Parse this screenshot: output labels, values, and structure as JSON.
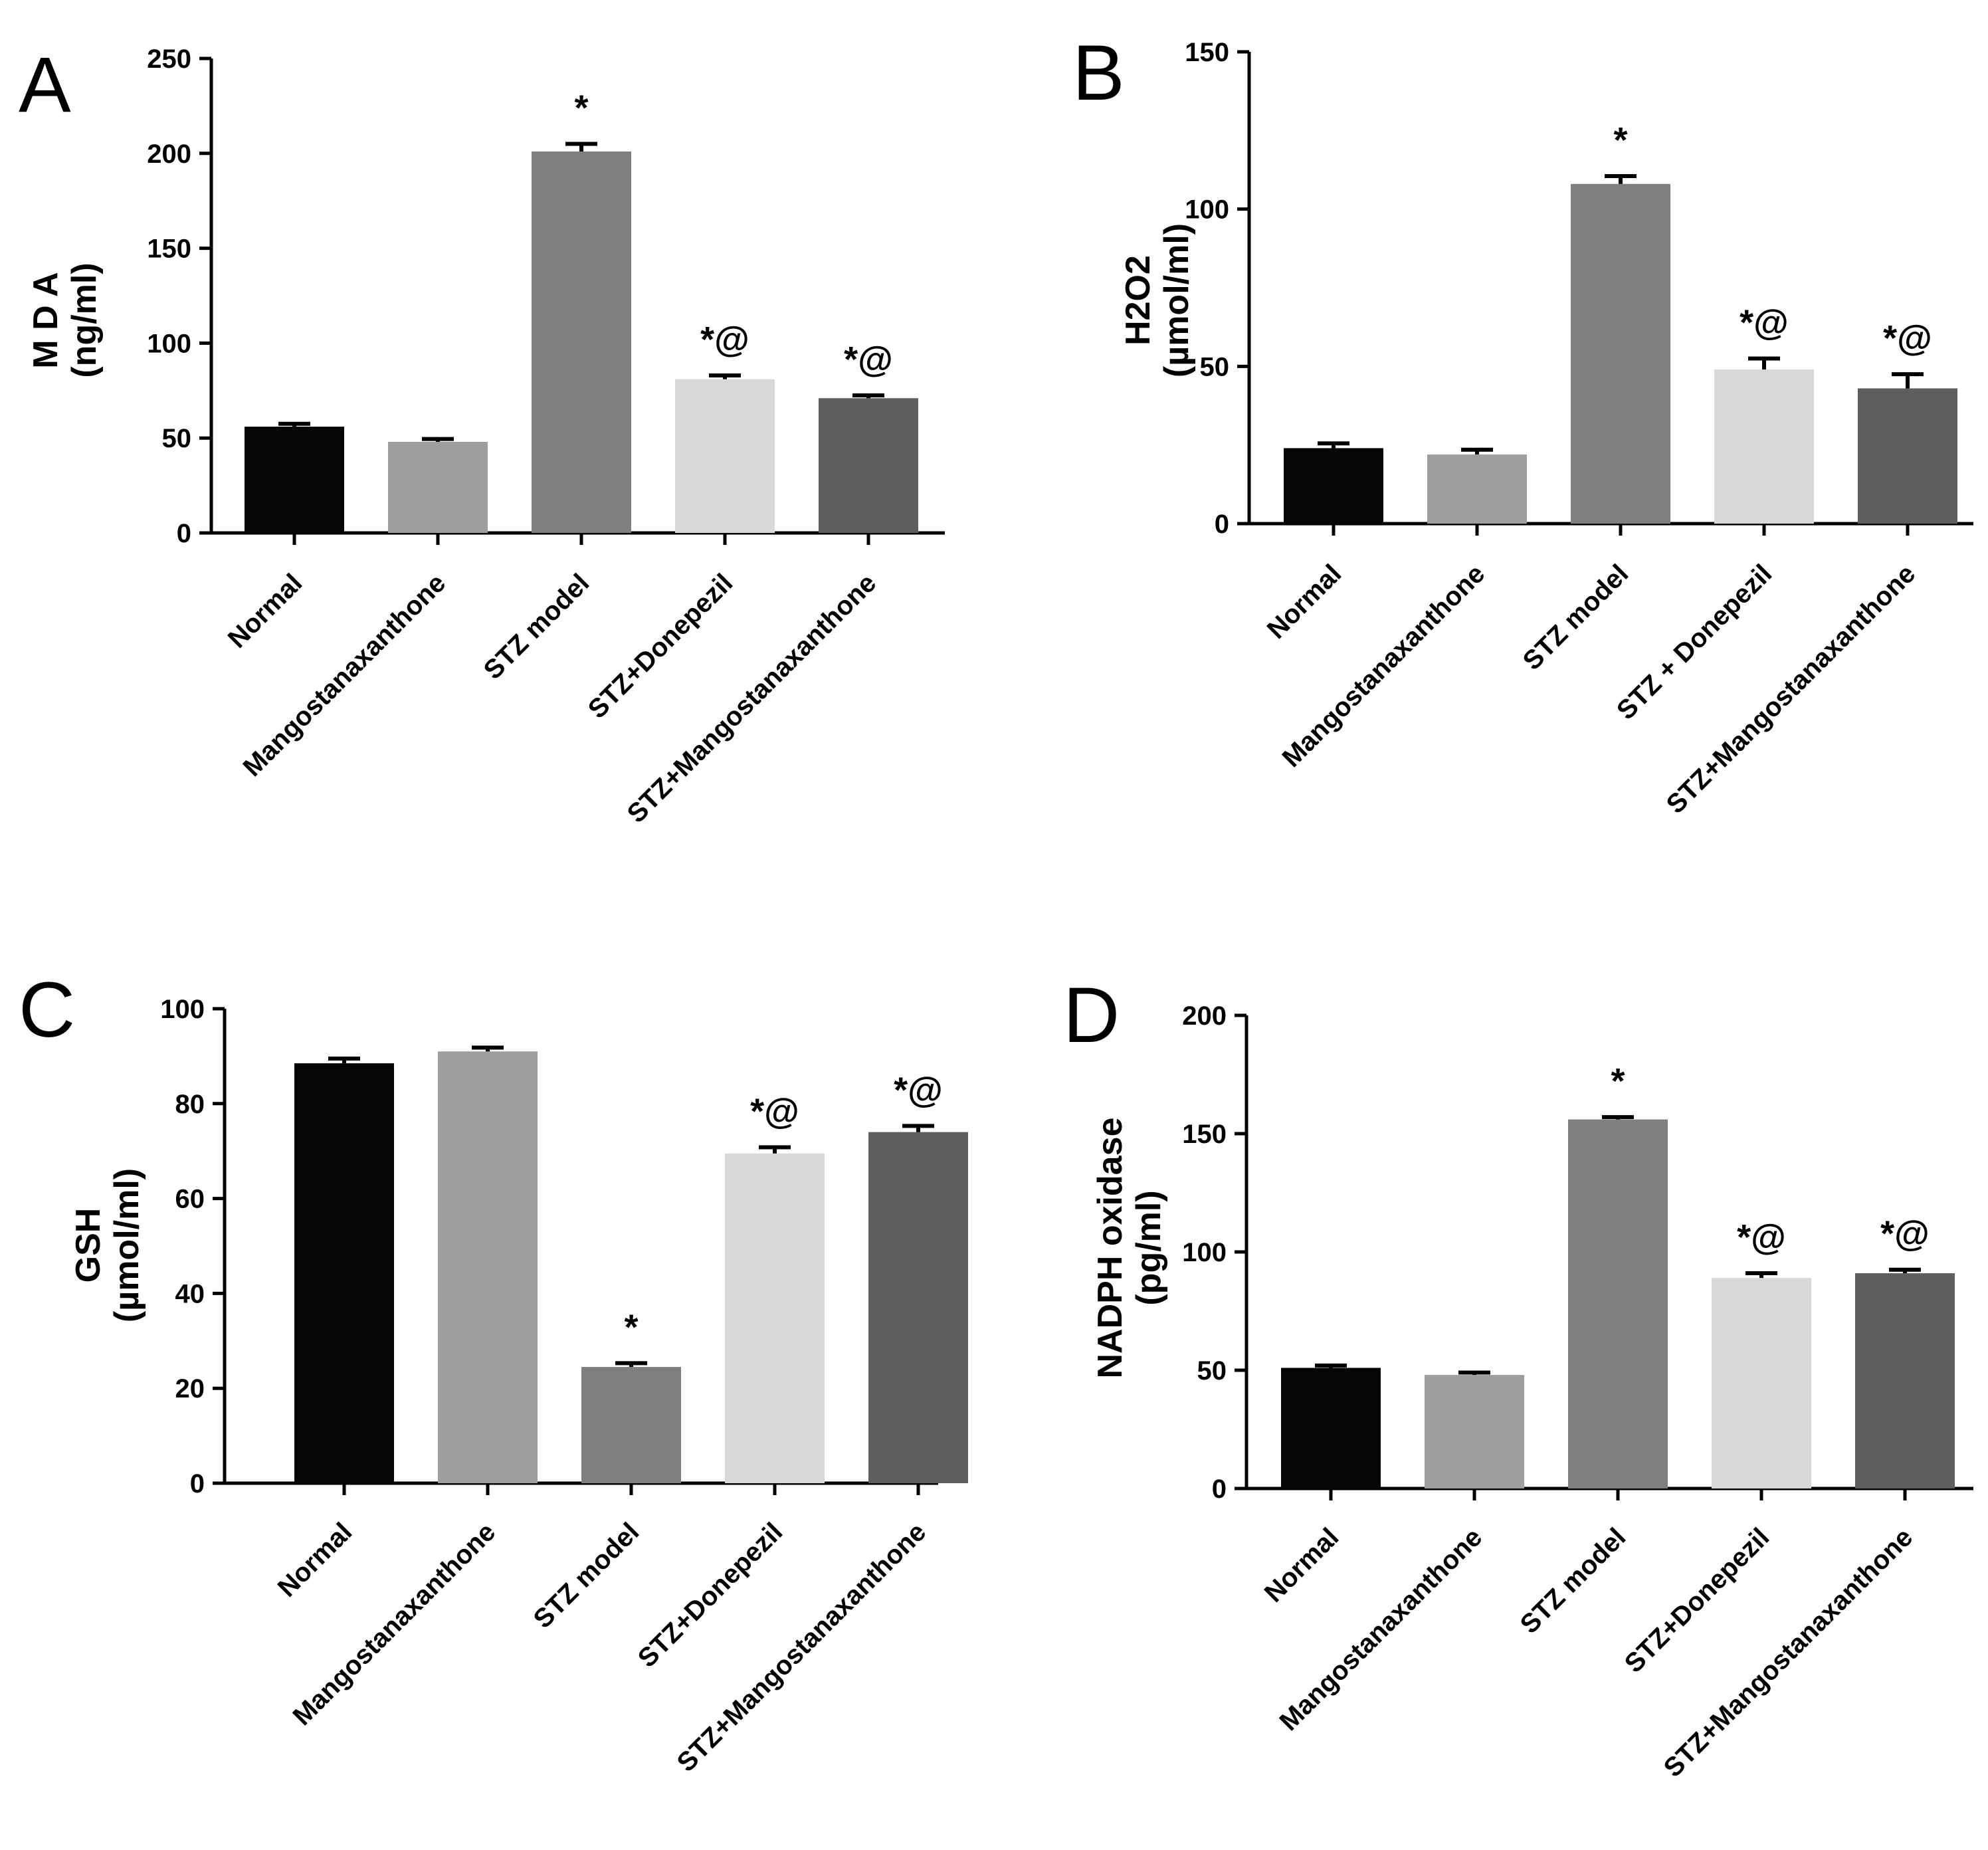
{
  "chart_data": [
    {
      "panel": "A",
      "type": "bar",
      "ylabel": "M D A",
      "ylabel_unit": "(ng/ml)",
      "ylim": [
        0,
        250
      ],
      "yticks": [
        0,
        50,
        100,
        150,
        200,
        250
      ],
      "categories": [
        "Normal",
        "Mangostanaxanthone",
        "STZ model",
        "STZ+Donepezil",
        "STZ+Mangostanaxanthone"
      ],
      "values": [
        56,
        48,
        201,
        81,
        71
      ],
      "errors": [
        1.5,
        1.5,
        4,
        2,
        1.5
      ],
      "annotations": [
        "",
        "",
        "*",
        "*@",
        "*@"
      ],
      "colors": [
        "#050505",
        "#9e9ea1",
        "#7f7f7f",
        "#d8d8d8",
        "#5e5e5e"
      ]
    },
    {
      "panel": "B",
      "type": "bar",
      "ylabel": "H2O2",
      "ylabel_unit": "(µmol/ml)",
      "ylim": [
        0,
        150
      ],
      "yticks": [
        0,
        50,
        100,
        150
      ],
      "categories": [
        "Normal",
        "Mangostanaxanthone",
        "STZ model",
        "STZ + Donepezil",
        "STZ+Mangostanaxanthone"
      ],
      "values": [
        24,
        22,
        108,
        49,
        43
      ],
      "errors": [
        1.5,
        1.5,
        2.5,
        3.5,
        4.5
      ],
      "annotations": [
        "",
        "",
        "*",
        "*@",
        "*@"
      ],
      "colors": [
        "#050505",
        "#9e9ea1",
        "#7f7f7f",
        "#d8d8d8",
        "#5e5e5e"
      ]
    },
    {
      "panel": "C",
      "type": "bar",
      "ylabel": "GSH",
      "ylabel_unit": "(µmol/ml)",
      "ylim": [
        0,
        100
      ],
      "yticks": [
        0,
        20,
        40,
        60,
        80,
        100
      ],
      "categories": [
        "Normal",
        "Mangostanaxanthone",
        "STZ model",
        "STZ+Donepezil",
        "STZ+Mangostanaxanthone"
      ],
      "values": [
        88.5,
        91,
        24.5,
        69.5,
        74
      ],
      "errors": [
        1,
        0.8,
        0.8,
        1.3,
        1.3
      ],
      "annotations": [
        "",
        "",
        "*",
        "*@",
        "*@"
      ],
      "colors": [
        "#050505",
        "#9e9ea1",
        "#7f7f7f",
        "#d8d8d8",
        "#5e5e5e"
      ]
    },
    {
      "panel": "D",
      "type": "bar",
      "ylabel": "NADPH oxidase",
      "ylabel_unit": "(pg/ml)",
      "ylim": [
        0,
        200
      ],
      "yticks": [
        0,
        50,
        100,
        150,
        200
      ],
      "categories": [
        "Normal",
        "Mangostanaxanthone",
        "STZ model",
        "STZ+Donepezil",
        "STZ+Mangostanaxanthone"
      ],
      "values": [
        51,
        48,
        156,
        89,
        91
      ],
      "errors": [
        1,
        1,
        1,
        2,
        1.5
      ],
      "annotations": [
        "",
        "",
        "*",
        "*@",
        "*@"
      ],
      "colors": [
        "#050505",
        "#9e9ea1",
        "#7f7f7f",
        "#d8d8d8",
        "#5e5e5e"
      ]
    }
  ]
}
